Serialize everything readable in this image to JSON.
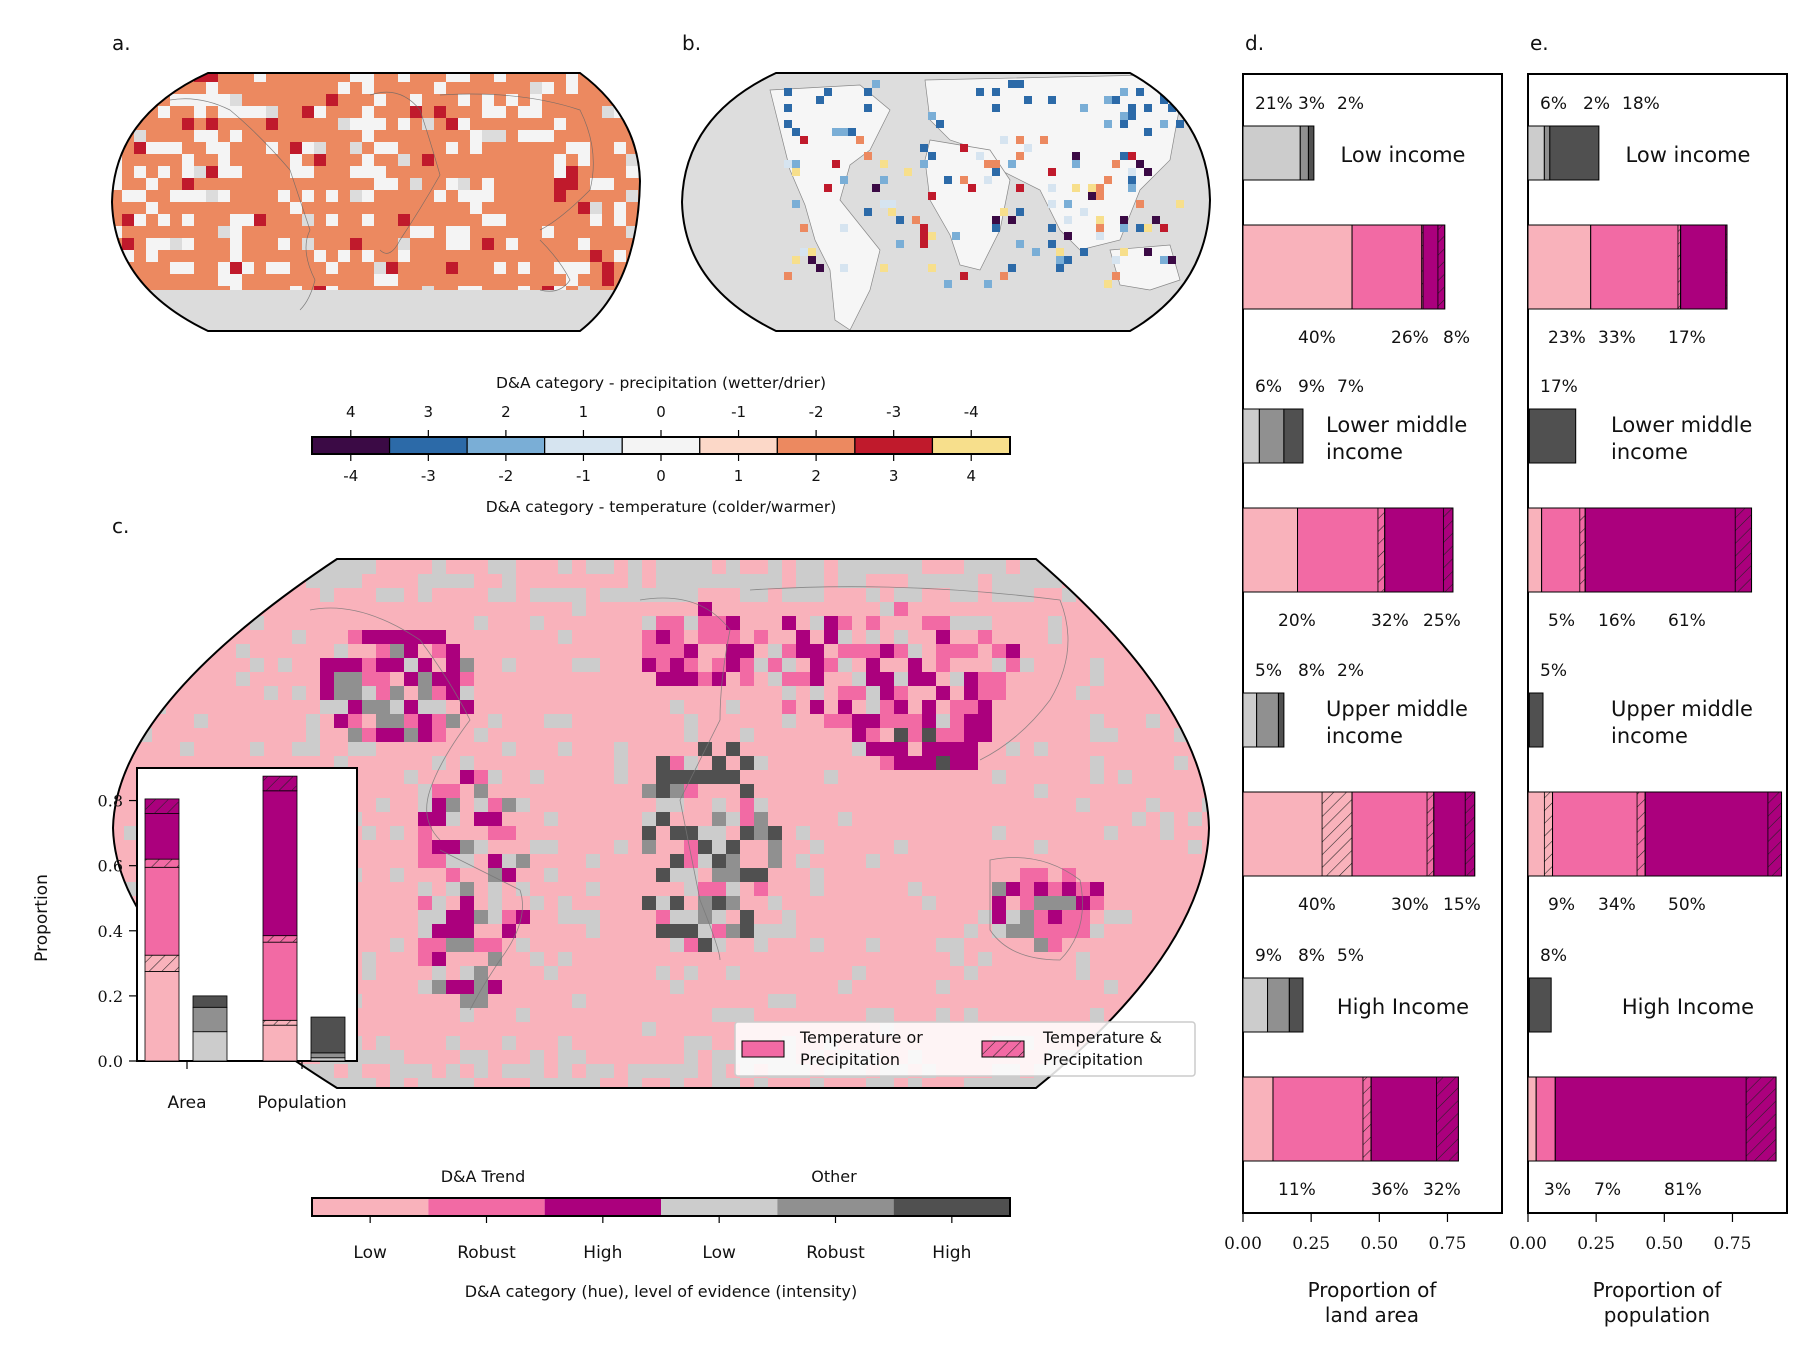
{
  "panel_labels": {
    "a": "a.",
    "b": "b.",
    "c": "c.",
    "d": "d.",
    "e": "e."
  },
  "colorbar_top": {
    "title_top": "D&A category - precipitation (wetter/drier)",
    "ticks_top": [
      "4",
      "3",
      "2",
      "1",
      "0",
      "-1",
      "-2",
      "-3",
      "-4"
    ],
    "ticks_bottom": [
      "-4",
      "-3",
      "-2",
      "-1",
      "0",
      "1",
      "2",
      "3",
      "4"
    ],
    "title_bottom": "D&A category - temperature (colder/warmer)",
    "colors": [
      "#3b0a45",
      "#2c6aa8",
      "#7aaed6",
      "#d6e4f0",
      "#f4f4f4",
      "#fcd8c8",
      "#ec8960",
      "#c01a2c",
      "#f7df8c"
    ]
  },
  "colorbar_bottom": {
    "group_labels": [
      "D&A Trend",
      "Other"
    ],
    "tick_labels": [
      "Low",
      "Robust",
      "High",
      "Low",
      "Robust",
      "High"
    ],
    "title": "D&A category (hue), level of evidence (intensity)",
    "colors": [
      "#f9b2bb",
      "#f26aa4",
      "#ab007d",
      "#cccccc",
      "#909090",
      "#505050"
    ]
  },
  "legend": {
    "items": [
      {
        "label": "Temperature or Precipitation",
        "line1": "Temperature or",
        "line2": "Precipitation",
        "hatched": false
      },
      {
        "label": "Temperature & Precipitation",
        "line1": "Temperature &",
        "line2": "Precipitation",
        "hatched": true
      }
    ]
  },
  "chart_data": [
    {
      "panel": "c-inset",
      "type": "bar",
      "stacked": true,
      "ylabel": "Proportion",
      "ylim": [
        0,
        0.9
      ],
      "yticks": [
        "0.0",
        "0.2",
        "0.4",
        "0.6",
        "0.8"
      ],
      "categories": [
        "Area",
        "Population"
      ],
      "groups": [
        {
          "category": "Area",
          "kind": "D&A Trend",
          "segments": [
            {
              "level": "Low",
              "hatched": false,
              "value": 0.275
            },
            {
              "level": "Low",
              "hatched": true,
              "value": 0.05
            },
            {
              "level": "Robust",
              "hatched": false,
              "value": 0.27
            },
            {
              "level": "Robust",
              "hatched": true,
              "value": 0.025
            },
            {
              "level": "High",
              "hatched": false,
              "value": 0.14
            },
            {
              "level": "High",
              "hatched": true,
              "value": 0.045
            }
          ]
        },
        {
          "category": "Area",
          "kind": "Other",
          "segments": [
            {
              "level": "Low",
              "value": 0.09
            },
            {
              "level": "Robust",
              "value": 0.075
            },
            {
              "level": "High",
              "value": 0.035
            }
          ]
        },
        {
          "category": "Population",
          "kind": "D&A Trend",
          "segments": [
            {
              "level": "Low",
              "hatched": false,
              "value": 0.11
            },
            {
              "level": "Low",
              "hatched": true,
              "value": 0.015
            },
            {
              "level": "Robust",
              "hatched": false,
              "value": 0.24
            },
            {
              "level": "Robust",
              "hatched": true,
              "value": 0.02
            },
            {
              "level": "High",
              "hatched": false,
              "value": 0.445
            },
            {
              "level": "High",
              "hatched": true,
              "value": 0.045
            }
          ]
        },
        {
          "category": "Population",
          "kind": "Other",
          "segments": [
            {
              "level": "Low",
              "value": 0.01
            },
            {
              "level": "Robust",
              "value": 0.015
            },
            {
              "level": "High",
              "value": 0.11
            }
          ]
        }
      ]
    },
    {
      "panel": "d",
      "type": "bar",
      "orientation": "horizontal",
      "stacked": true,
      "xlabel": "Proportion of land area",
      "xlabel_line1": "Proportion of",
      "xlabel_line2": "land area",
      "xlim": [
        0,
        0.95
      ],
      "xticks": [
        "0.00",
        "0.25",
        "0.50",
        "0.75"
      ],
      "groups": [
        {
          "name": "Low income",
          "name_line1": "Low income",
          "name_line2": "",
          "other_labels": [
            "21%",
            "3%",
            "2%"
          ],
          "other": [
            {
              "level": "Low",
              "value": 0.21
            },
            {
              "level": "Robust",
              "value": 0.03
            },
            {
              "level": "High",
              "value": 0.02
            }
          ],
          "trend_labels": [
            "40%",
            "26%",
            "8%"
          ],
          "trend": [
            {
              "level": "Low",
              "value": 0.4,
              "hatch": 0
            },
            {
              "level": "Robust",
              "value": 0.26,
              "hatch": 0.005
            },
            {
              "level": "High",
              "value": 0.08,
              "hatch": 0.025
            }
          ]
        },
        {
          "name": "Lower middle income",
          "name_line1": "Lower middle",
          "name_line2": "income",
          "other_labels": [
            "6%",
            "9%",
            "7%"
          ],
          "other": [
            {
              "level": "Low",
              "value": 0.06
            },
            {
              "level": "Robust",
              "value": 0.09
            },
            {
              "level": "High",
              "value": 0.07
            }
          ],
          "trend_labels": [
            "20%",
            "32%",
            "25%"
          ],
          "trend": [
            {
              "level": "Low",
              "value": 0.2,
              "hatch": 0
            },
            {
              "level": "Robust",
              "value": 0.32,
              "hatch": 0.025
            },
            {
              "level": "High",
              "value": 0.25,
              "hatch": 0.035
            }
          ]
        },
        {
          "name": "Upper middle income",
          "name_line1": "Upper middle",
          "name_line2": "income",
          "other_labels": [
            "5%",
            "8%",
            "2%"
          ],
          "other": [
            {
              "level": "Low",
              "value": 0.05
            },
            {
              "level": "Robust",
              "value": 0.08
            },
            {
              "level": "High",
              "value": 0.02
            }
          ],
          "trend_labels": [
            "40%",
            "30%",
            "15%"
          ],
          "trend": [
            {
              "level": "Low",
              "value": 0.4,
              "hatch": 0.11
            },
            {
              "level": "Robust",
              "value": 0.3,
              "hatch": 0.025
            },
            {
              "level": "High",
              "value": 0.15,
              "hatch": 0.035
            }
          ]
        },
        {
          "name": "High Income",
          "name_line1": "High Income",
          "name_line2": "",
          "other_labels": [
            "9%",
            "8%",
            "5%"
          ],
          "other": [
            {
              "level": "Low",
              "value": 0.09
            },
            {
              "level": "Robust",
              "value": 0.08
            },
            {
              "level": "High",
              "value": 0.05
            }
          ],
          "trend_labels": [
            "11%",
            "36%",
            "32%"
          ],
          "trend": [
            {
              "level": "Low",
              "value": 0.11,
              "hatch": 0
            },
            {
              "level": "Robust",
              "value": 0.36,
              "hatch": 0.03
            },
            {
              "level": "High",
              "value": 0.32,
              "hatch": 0.08
            }
          ]
        }
      ]
    },
    {
      "panel": "e",
      "type": "bar",
      "orientation": "horizontal",
      "stacked": true,
      "xlabel": "Proportion of population",
      "xlabel_line1": "Proportion of",
      "xlabel_line2": "population",
      "xlim": [
        0,
        0.95
      ],
      "xticks": [
        "0.00",
        "0.25",
        "0.50",
        "0.75"
      ],
      "groups": [
        {
          "name": "Low income",
          "name_line1": "Low income",
          "name_line2": "",
          "other_labels": [
            "6%",
            "2%",
            "18%"
          ],
          "other": [
            {
              "level": "Low",
              "value": 0.06
            },
            {
              "level": "Robust",
              "value": 0.02
            },
            {
              "level": "High",
              "value": 0.18
            }
          ],
          "trend_labels": [
            "23%",
            "33%",
            "17%"
          ],
          "trend": [
            {
              "level": "Low",
              "value": 0.23,
              "hatch": 0
            },
            {
              "level": "Robust",
              "value": 0.33,
              "hatch": 0.01
            },
            {
              "level": "High",
              "value": 0.17,
              "hatch": 0.005
            }
          ]
        },
        {
          "name": "Lower middle income",
          "name_line1": "Lower middle",
          "name_line2": "income",
          "other_labels": [
            "17%"
          ],
          "other": [
            {
              "level": "Low",
              "value": 0.002
            },
            {
              "level": "Robust",
              "value": 0.003
            },
            {
              "level": "High",
              "value": 0.17
            }
          ],
          "trend_labels": [
            "5%",
            "16%",
            "61%"
          ],
          "trend": [
            {
              "level": "Low",
              "value": 0.05,
              "hatch": 0
            },
            {
              "level": "Robust",
              "value": 0.16,
              "hatch": 0.02
            },
            {
              "level": "High",
              "value": 0.61,
              "hatch": 0.06
            }
          ]
        },
        {
          "name": "Upper middle income",
          "name_line1": "Upper middle",
          "name_line2": "income",
          "other_labels": [
            "5%"
          ],
          "other": [
            {
              "level": "Low",
              "value": 0.002
            },
            {
              "level": "Robust",
              "value": 0.003
            },
            {
              "level": "High",
              "value": 0.05
            }
          ],
          "trend_labels": [
            "9%",
            "34%",
            "50%"
          ],
          "trend": [
            {
              "level": "Low",
              "value": 0.09,
              "hatch": 0.03
            },
            {
              "level": "Robust",
              "value": 0.34,
              "hatch": 0.03
            },
            {
              "level": "High",
              "value": 0.5,
              "hatch": 0.05
            }
          ]
        },
        {
          "name": "High Income",
          "name_line1": "High Income",
          "name_line2": "",
          "other_labels": [
            "8%"
          ],
          "other": [
            {
              "level": "Low",
              "value": 0.002
            },
            {
              "level": "Robust",
              "value": 0.003
            },
            {
              "level": "High",
              "value": 0.08
            }
          ],
          "trend_labels": [
            "3%",
            "7%",
            "81%"
          ],
          "trend": [
            {
              "level": "Low",
              "value": 0.03,
              "hatch": 0
            },
            {
              "level": "Robust",
              "value": 0.07,
              "hatch": 0
            },
            {
              "level": "High",
              "value": 0.81,
              "hatch": 0.11
            }
          ]
        }
      ]
    }
  ]
}
